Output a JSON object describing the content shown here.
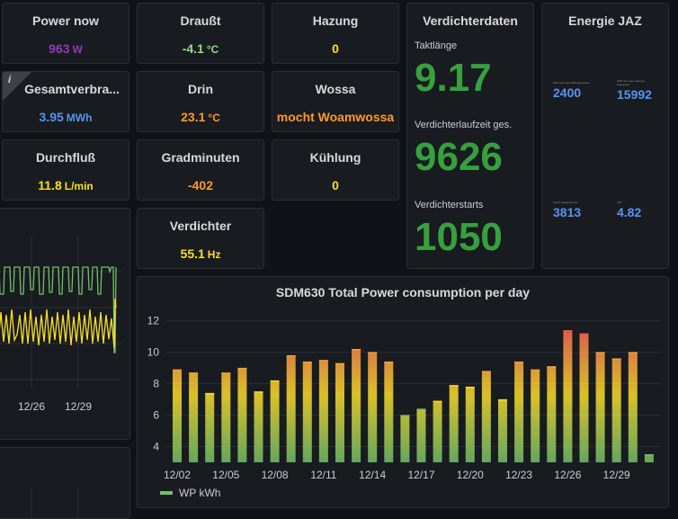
{
  "stats": {
    "power_now": {
      "title": "Power now",
      "value": "963",
      "unit": "W",
      "color": "#8f3bb8"
    },
    "drausst": {
      "title": "Draußt",
      "value": "-4.1",
      "unit": "°C",
      "color": "#96d98d"
    },
    "hazung": {
      "title": "Hazung",
      "value": "0",
      "unit": "",
      "color": "#fade2a"
    },
    "gesamt": {
      "title": "Gesamtverbra...",
      "value": "3.95",
      "unit": "MWh",
      "color": "#5794f2"
    },
    "drin": {
      "title": "Drin",
      "value": "23.1",
      "unit": "°C",
      "color": "#ff9830"
    },
    "wossa": {
      "title": "Wossa",
      "value": "mocht Woamwossa",
      "unit": "",
      "color": "#ff9830"
    },
    "durchfluss": {
      "title": "Durchfluß",
      "value": "11.8",
      "unit": "L/min",
      "color": "#fade2a"
    },
    "gradminuten": {
      "title": "Gradminuten",
      "value": "-402",
      "unit": "",
      "color": "#ff9830"
    },
    "kuehlung": {
      "title": "Kühlung",
      "value": "0",
      "unit": "",
      "color": "#fade2a"
    },
    "verdichter": {
      "title": "Verdichter",
      "value": "55.1",
      "unit": "Hz",
      "color": "#fade2a"
    }
  },
  "verdichterdaten": {
    "title": "Verdichterdaten",
    "items": [
      {
        "label": "Taktlänge",
        "value": "9.17"
      },
      {
        "label": "Verdichterlaufzeit ges.",
        "value": "9626"
      },
      {
        "label": "Verdichterstarts",
        "value": "1050"
      }
    ],
    "color": "#37a03e"
  },
  "energie_jaz": {
    "title": "Energie JAZ",
    "items": [
      {
        "label": "Wärmemenge WW abgegeben",
        "value": "2400"
      },
      {
        "label": "Wärmemenge Heizung abgegeben",
        "value": "15992"
      },
      {
        "label": "Strom aufgenommen",
        "value": "3813"
      },
      {
        "label": "JAZ",
        "value": "4.82"
      }
    ],
    "color": "#5794f2"
  },
  "left_chart": {
    "x_ticks": [
      "12/26",
      "12/29"
    ],
    "colors": {
      "green": "#73bf69",
      "yellow": "#fade2a"
    }
  },
  "chart_data": {
    "type": "bar",
    "title": "SDM630 Total Power consumption per day",
    "series": [
      {
        "name": "WP kWh",
        "values": [
          8.9,
          8.7,
          7.4,
          8.7,
          9.0,
          7.5,
          8.2,
          9.8,
          9.4,
          9.5,
          9.3,
          10.2,
          10.0,
          9.4,
          6.0,
          6.4,
          6.9,
          7.9,
          7.8,
          8.8,
          7.0,
          9.4,
          8.9,
          9.1,
          11.4,
          11.2,
          10.0,
          9.6,
          10.0,
          3.5
        ]
      }
    ],
    "x_ticks": [
      "12/02",
      "12/05",
      "12/08",
      "12/11",
      "12/14",
      "12/17",
      "12/20",
      "12/23",
      "12/26",
      "12/29"
    ],
    "y_ticks": [
      "4",
      "6",
      "8",
      "10",
      "12"
    ],
    "ylim": [
      3,
      12.5
    ],
    "legend_position": "bottom-left",
    "colors": {
      "low": "#73bf69",
      "mid": "#fade2a",
      "high": "#f2495c"
    }
  }
}
